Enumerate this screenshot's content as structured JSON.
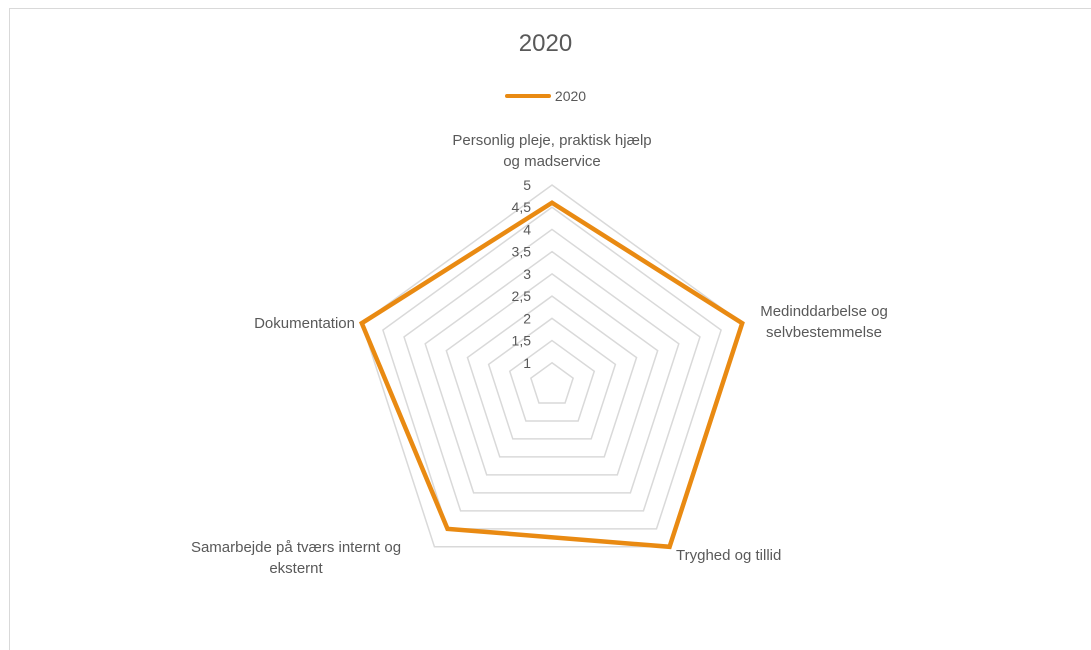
{
  "chart_data": {
    "type": "radar",
    "title": "2020",
    "legend": "top",
    "r_ticks": [
      "1",
      "1,5",
      "2",
      "2,5",
      "3",
      "3,5",
      "4",
      "4,5",
      "5"
    ],
    "r_range": [
      1,
      5
    ],
    "categories": [
      "Personlig pleje, praktisk hjælp og madservice",
      "Medinddarbelse og selvbestemmelse",
      "Tryghed og tillid",
      "Samarbejde på tværs internt og eksternt",
      "Dokumentation"
    ],
    "category_lines": [
      [
        "Personlig pleje, praktisk hjælp",
        "og madservice"
      ],
      [
        "Medinddarbelse og",
        "selvbestemmelse"
      ],
      [
        "Tryghed og tillid"
      ],
      [
        "Samarbejde på tværs internt og",
        "eksternt"
      ],
      [
        "Dokumentation"
      ]
    ],
    "series": [
      {
        "name": "2020",
        "values": [
          4.6,
          5.0,
          5.0,
          4.5,
          5.0
        ]
      }
    ],
    "colors": {
      "series": "#E98A12",
      "grid": "#d9d9d9",
      "text": "#595959"
    }
  }
}
